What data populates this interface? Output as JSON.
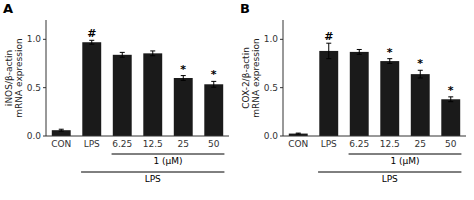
{
  "chart_data": [
    {
      "type": "bar",
      "title": "A",
      "categories": [
        "CON",
        "LPS",
        "6.25",
        "12.5",
        "25",
        "50"
      ],
      "values": [
        0.06,
        0.97,
        0.84,
        0.855,
        0.6,
        0.535
      ],
      "errors": [
        0.01,
        0.02,
        0.025,
        0.025,
        0.025,
        0.03
      ],
      "color": "#1a1a1a",
      "ylabel": "iNOS/β-actin\nmRNA expression",
      "brackets": [
        {
          "label": "1 (μM)",
          "from": "6.25",
          "to": "50"
        },
        {
          "label": "LPS",
          "from": "LPS",
          "to": "50"
        }
      ],
      "ylim": [
        0,
        1.2
      ],
      "yticks": [
        {
          "value": 0,
          "label": "0.0"
        },
        0.5,
        {
          "value": 1,
          "label": "1.0"
        }
      ],
      "annotations": [
        null,
        "#",
        null,
        null,
        "*",
        "*"
      ],
      "grid": false
    },
    {
      "type": "bar",
      "title": "B",
      "categories": [
        "CON",
        "LPS",
        "6.25",
        "12.5",
        "25",
        "50"
      ],
      "values": [
        0.025,
        0.88,
        0.87,
        0.775,
        0.64,
        0.38
      ],
      "errors": [
        0.005,
        0.08,
        0.025,
        0.025,
        0.04,
        0.025
      ],
      "color": "#1a1a1a",
      "ylabel": "COX-2/β-actin\nmRNA expression",
      "brackets": [
        {
          "label": "1 (μM)",
          "from": "6.25",
          "to": "50"
        },
        {
          "label": "LPS",
          "from": "LPS",
          "to": "50"
        }
      ],
      "ylim": [
        0,
        1.2
      ],
      "yticks": [
        {
          "value": 0,
          "label": "0.0"
        },
        0.5,
        {
          "value": 1,
          "label": "1.0"
        }
      ],
      "annotations": [
        null,
        "#",
        null,
        "*",
        "*",
        "*"
      ],
      "grid": false
    }
  ]
}
